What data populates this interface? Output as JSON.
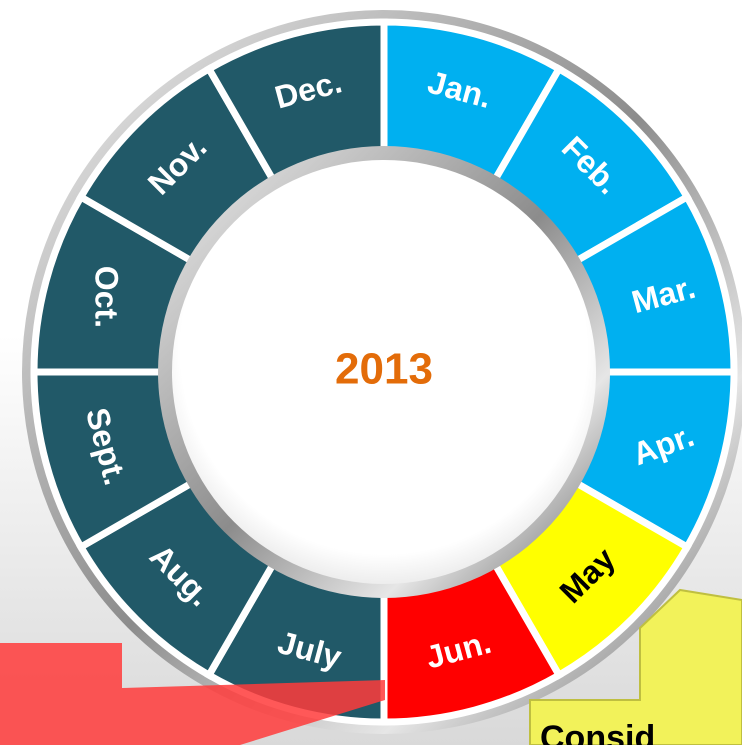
{
  "center": "2013",
  "months": [
    "Jan.",
    "Feb.",
    "Mar.",
    "Apr.",
    "May",
    "Jun.",
    "July",
    "Aug.",
    "Sept.",
    "Oct.",
    "Nov.",
    "Dec."
  ],
  "callout": "Consid"
}
